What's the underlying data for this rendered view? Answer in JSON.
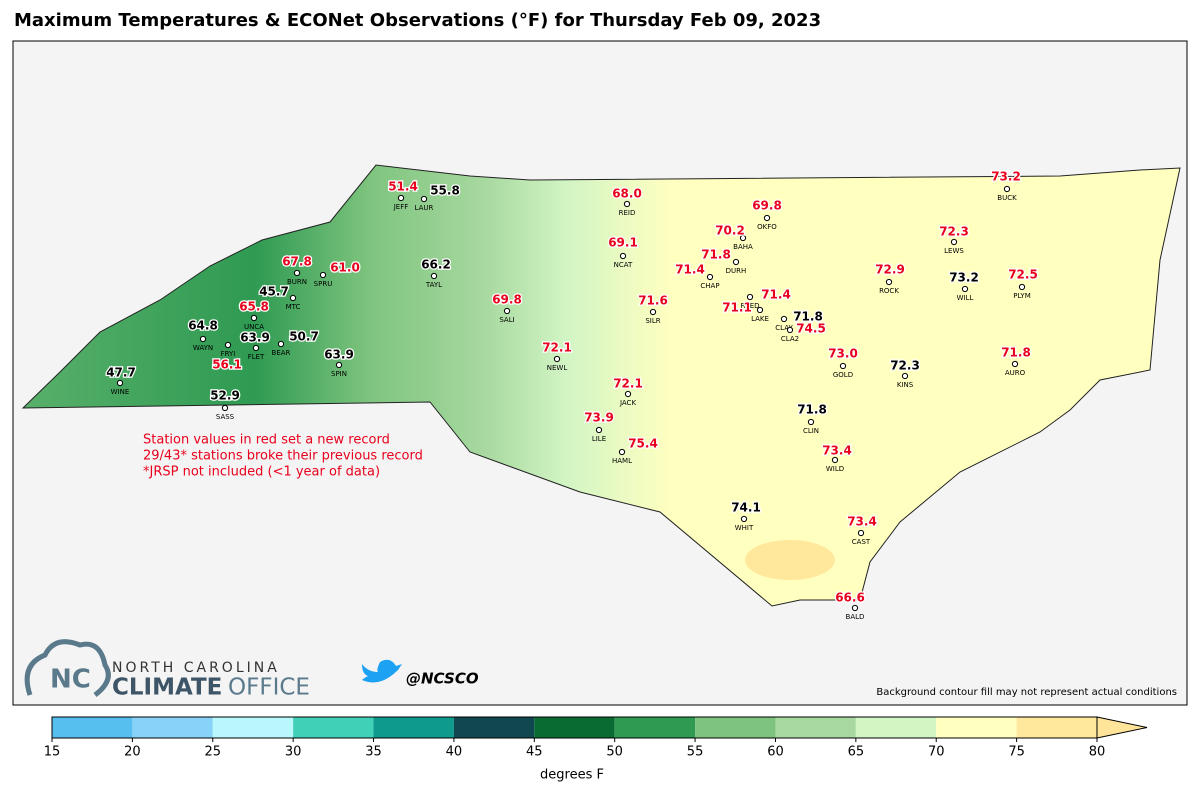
{
  "title": "Maximum Temperatures & ECONet Observations (°F) for Thursday Feb 09, 2023",
  "record_color": "#e8001c",
  "normal_color": "#000000",
  "stations": [
    {
      "id": "JEFF",
      "value": 51.4,
      "record": true
    },
    {
      "id": "LAUR",
      "value": 55.8,
      "record": false
    },
    {
      "id": "REID",
      "value": 68.0,
      "value_label": "68.0",
      "record": true
    },
    {
      "id": "BUCK",
      "value": 73.2,
      "record": true
    },
    {
      "id": "OKFO",
      "value": 69.8,
      "record": true
    },
    {
      "id": "BAHA",
      "value": 70.2,
      "record": true
    },
    {
      "id": "DURH",
      "value": 71.8,
      "record": true
    },
    {
      "id": "NCAT",
      "value": 69.1,
      "record": true
    },
    {
      "id": "LEWS",
      "value": 72.3,
      "record": true
    },
    {
      "id": "BURN",
      "value": 67.8,
      "record": true
    },
    {
      "id": "SPRU",
      "value": 61.0,
      "value_label": "61.0",
      "record": true
    },
    {
      "id": "TAYL",
      "value": 66.2,
      "record": false
    },
    {
      "id": "MTC",
      "value": 45.7,
      "record": false
    },
    {
      "id": "CHAP",
      "value": 71.4,
      "record": true
    },
    {
      "id": "REED",
      "value": 71.4,
      "record": true
    },
    {
      "id": "LAKE",
      "value": 71.1,
      "record": true
    },
    {
      "id": "CLAY",
      "value": 71.8,
      "record": false
    },
    {
      "id": "CLA2",
      "value": 74.5,
      "record": true
    },
    {
      "id": "ROCK",
      "value": 72.9,
      "record": true
    },
    {
      "id": "WILL",
      "value": 73.2,
      "record": false
    },
    {
      "id": "PLYM",
      "value": 72.5,
      "record": true
    },
    {
      "id": "UNCA",
      "value": 65.8,
      "record": true
    },
    {
      "id": "WAYN",
      "value": 64.8,
      "record": false
    },
    {
      "id": "FRYI",
      "value": 56.1,
      "record": true
    },
    {
      "id": "FLET",
      "value": 63.9,
      "record": false
    },
    {
      "id": "BEAR",
      "value": 50.7,
      "record": false
    },
    {
      "id": "SALI",
      "value": 69.8,
      "record": true
    },
    {
      "id": "SILR",
      "value": 71.6,
      "record": true
    },
    {
      "id": "SPIN",
      "value": 63.9,
      "record": false
    },
    {
      "id": "WINE",
      "value": 47.7,
      "record": false
    },
    {
      "id": "SASS",
      "value": 52.9,
      "record": false
    },
    {
      "id": "NEWL",
      "value": 72.1,
      "record": true
    },
    {
      "id": "GOLD",
      "value": 73.0,
      "value_label": "73.0",
      "record": true
    },
    {
      "id": "KINS",
      "value": 72.3,
      "record": false
    },
    {
      "id": "AURO",
      "value": 71.8,
      "record": true
    },
    {
      "id": "JACK",
      "value": 72.1,
      "record": true
    },
    {
      "id": "LILE",
      "value": 73.9,
      "record": true
    },
    {
      "id": "HAML",
      "value": 75.4,
      "record": true
    },
    {
      "id": "CLIN",
      "value": 71.8,
      "record": false
    },
    {
      "id": "WILD",
      "value": 73.4,
      "record": true
    },
    {
      "id": "WHIT",
      "value": 74.1,
      "record": false
    },
    {
      "id": "CAST",
      "value": 73.4,
      "record": true
    },
    {
      "id": "BALD",
      "value": 66.6,
      "record": true
    }
  ],
  "notes": [
    "Station values in red set a new record",
    "29/43* stations broke their previous record",
    "*JRSP not included (<1 year of data)"
  ],
  "logo": {
    "top": "NORTH CAROLINA",
    "left": "CLIMATE",
    "right": "OFFICE"
  },
  "twitter": "@NCSCO",
  "disclaimer": "Background contour fill may not represent actual conditions",
  "colorbar": {
    "ticks": [
      15,
      20,
      25,
      30,
      35,
      40,
      45,
      50,
      55,
      60,
      65,
      70,
      75,
      80
    ],
    "colors": [
      "#56bff0",
      "#87d3f8",
      "#b8f7fc",
      "#40d0b8",
      "#0e9a8c",
      "#11484f",
      "#0a6b32",
      "#2f9a52",
      "#7ec47e",
      "#a8d9a0",
      "#d2f5c4",
      "#ffffc0",
      "#ffe89c"
    ],
    "extend_color": "#ffe49a",
    "label": "degrees F"
  }
}
